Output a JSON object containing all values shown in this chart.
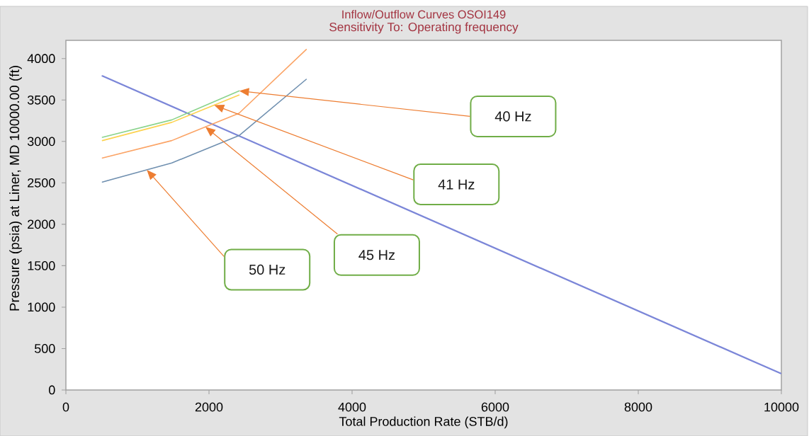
{
  "chart_data": {
    "type": "line",
    "title": "Inflow/Outflow Curves OSOI149",
    "subtitle": "Sensitivity To: Operating frequency",
    "xlabel": "Total Production Rate (STB/d)",
    "ylabel": "Pressure (psia) at Liner, MD 10000.00 (ft)",
    "x": [
      510,
      1480,
      2420,
      3360
    ],
    "series": [
      {
        "x": [
          510,
          9990
        ],
        "values": [
          3790,
          200
        ],
        "color": "#7b86d8"
      },
      {
        "values": [
          3050,
          3260,
          3610,
          null
        ],
        "color": "#8ad38c"
      },
      {
        "values": [
          3010,
          3230,
          3560,
          null
        ],
        "color": "#fcd250"
      },
      {
        "values": [
          2800,
          3010,
          3340,
          4110
        ],
        "color": "#fba466"
      },
      {
        "values": [
          2510,
          2740,
          3070,
          3750
        ],
        "color": "#7090b0"
      }
    ],
    "xlim": [
      0,
      10000
    ],
    "ylim": [
      0,
      4220
    ],
    "xticks": [
      0,
      2000,
      4000,
      6000,
      8000,
      10000
    ],
    "yticks": [
      0,
      500,
      1000,
      1500,
      2000,
      2500,
      3000,
      3500,
      4000
    ],
    "annotations": [
      "40 Hz",
      "41 Hz",
      "45 Hz",
      "50 Hz"
    ]
  }
}
